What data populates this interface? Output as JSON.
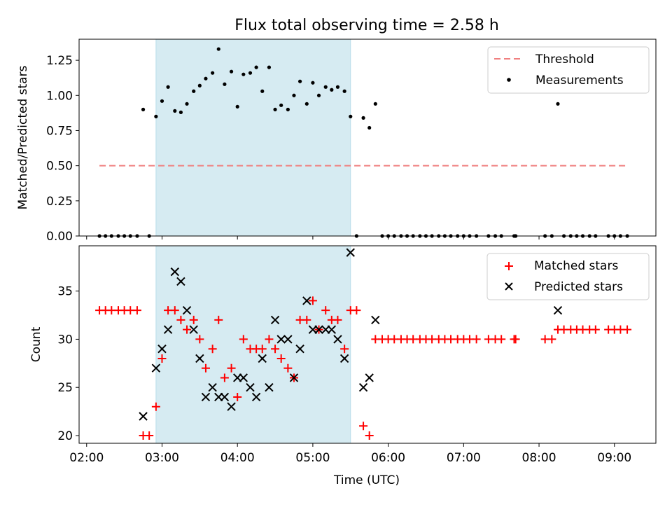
{
  "chart_data": [
    {
      "type": "scatter",
      "title": "Flux total observing time = 2.58 h",
      "ylabel": "Matched/Predicted stars",
      "xlabel": "",
      "xlim": [
        1.9,
        9.55
      ],
      "ylim": [
        0,
        1.4
      ],
      "yticks": [
        0,
        0.25,
        0.5,
        0.75,
        1.0,
        1.25
      ],
      "ytick_labels": [
        "0.00",
        "0.25",
        "0.50",
        "0.75",
        "1.00",
        "1.25"
      ],
      "xticks": [
        2,
        3,
        4,
        5,
        6,
        7,
        8,
        9
      ],
      "shaded_span": [
        2.92,
        5.5
      ],
      "legend": {
        "position": "top-right",
        "entries": [
          "Threshold",
          "Measurements"
        ]
      },
      "threshold": {
        "name": "Threshold",
        "value": 0.5,
        "x_range": [
          2.17,
          9.18
        ],
        "color": "#f08080"
      },
      "series": [
        {
          "name": "Measurements",
          "marker": "dot",
          "color": "#000000",
          "points": [
            [
              2.17,
              0
            ],
            [
              2.25,
              0
            ],
            [
              2.33,
              0
            ],
            [
              2.42,
              0
            ],
            [
              2.5,
              0
            ],
            [
              2.58,
              0
            ],
            [
              2.67,
              0
            ],
            [
              2.75,
              0.9
            ],
            [
              2.83,
              0
            ],
            [
              2.92,
              0.85
            ],
            [
              3.0,
              0.96
            ],
            [
              3.08,
              1.06
            ],
            [
              3.17,
              0.89
            ],
            [
              3.25,
              0.88
            ],
            [
              3.33,
              0.94
            ],
            [
              3.42,
              1.03
            ],
            [
              3.5,
              1.07
            ],
            [
              3.58,
              1.12
            ],
            [
              3.67,
              1.16
            ],
            [
              3.75,
              1.33
            ],
            [
              3.83,
              1.08
            ],
            [
              3.92,
              1.17
            ],
            [
              4.0,
              0.92
            ],
            [
              4.08,
              1.15
            ],
            [
              4.17,
              1.16
            ],
            [
              4.25,
              1.2
            ],
            [
              4.33,
              1.03
            ],
            [
              4.42,
              1.2
            ],
            [
              4.5,
              0.9
            ],
            [
              4.58,
              0.93
            ],
            [
              4.67,
              0.9
            ],
            [
              4.75,
              1.0
            ],
            [
              4.83,
              1.1
            ],
            [
              4.92,
              0.94
            ],
            [
              5.0,
              1.09
            ],
            [
              5.08,
              1.0
            ],
            [
              5.17,
              1.06
            ],
            [
              5.25,
              1.04
            ],
            [
              5.33,
              1.06
            ],
            [
              5.42,
              1.03
            ],
            [
              5.5,
              0.85
            ],
            [
              5.58,
              0
            ],
            [
              5.67,
              0.84
            ],
            [
              5.75,
              0.77
            ],
            [
              5.83,
              0.94
            ],
            [
              5.92,
              0
            ],
            [
              6.0,
              0
            ],
            [
              6.08,
              0
            ],
            [
              6.17,
              0
            ],
            [
              6.25,
              0
            ],
            [
              6.33,
              0
            ],
            [
              6.42,
              0
            ],
            [
              6.5,
              0
            ],
            [
              6.58,
              0
            ],
            [
              6.67,
              0
            ],
            [
              6.75,
              0
            ],
            [
              6.83,
              0
            ],
            [
              6.92,
              0
            ],
            [
              7.0,
              0
            ],
            [
              7.08,
              0
            ],
            [
              7.17,
              0
            ],
            [
              7.33,
              0
            ],
            [
              7.42,
              0
            ],
            [
              7.5,
              0
            ],
            [
              7.67,
              0
            ],
            [
              7.69,
              0
            ],
            [
              8.08,
              0
            ],
            [
              8.17,
              0
            ],
            [
              8.25,
              0.94
            ],
            [
              8.33,
              0
            ],
            [
              8.42,
              0
            ],
            [
              8.5,
              0
            ],
            [
              8.58,
              0
            ],
            [
              8.67,
              0
            ],
            [
              8.75,
              0
            ],
            [
              8.92,
              0
            ],
            [
              9.0,
              0
            ],
            [
              9.08,
              0
            ],
            [
              9.17,
              0
            ]
          ]
        }
      ]
    },
    {
      "type": "scatter",
      "title": "",
      "ylabel": "Count",
      "xlabel": "Time (UTC)",
      "xlim": [
        1.9,
        9.55
      ],
      "ylim": [
        19.2,
        39.7
      ],
      "yticks": [
        20,
        25,
        30,
        35
      ],
      "ytick_labels": [
        "20",
        "25",
        "30",
        "35"
      ],
      "xticks": [
        2,
        3,
        4,
        5,
        6,
        7,
        8,
        9
      ],
      "xtick_labels": [
        "02:00",
        "03:00",
        "04:00",
        "05:00",
        "06:00",
        "07:00",
        "08:00",
        "09:00"
      ],
      "shaded_span": [
        2.92,
        5.5
      ],
      "legend": {
        "position": "top-right",
        "entries": [
          "Matched stars",
          "Predicted stars"
        ]
      },
      "series": [
        {
          "name": "Matched stars",
          "marker": "plus",
          "color": "#ff0000",
          "points": [
            [
              2.17,
              33
            ],
            [
              2.25,
              33
            ],
            [
              2.33,
              33
            ],
            [
              2.42,
              33
            ],
            [
              2.5,
              33
            ],
            [
              2.58,
              33
            ],
            [
              2.67,
              33
            ],
            [
              2.75,
              20
            ],
            [
              2.83,
              20
            ],
            [
              2.92,
              23
            ],
            [
              3.0,
              28
            ],
            [
              3.08,
              33
            ],
            [
              3.17,
              33
            ],
            [
              3.25,
              32
            ],
            [
              3.33,
              31
            ],
            [
              3.42,
              32
            ],
            [
              3.5,
              30
            ],
            [
              3.58,
              27
            ],
            [
              3.67,
              29
            ],
            [
              3.75,
              32
            ],
            [
              3.83,
              26
            ],
            [
              3.92,
              27
            ],
            [
              4.0,
              24
            ],
            [
              4.08,
              30
            ],
            [
              4.17,
              29
            ],
            [
              4.25,
              29
            ],
            [
              4.33,
              29
            ],
            [
              4.42,
              30
            ],
            [
              4.5,
              29
            ],
            [
              4.58,
              28
            ],
            [
              4.67,
              27
            ],
            [
              4.75,
              26
            ],
            [
              4.83,
              32
            ],
            [
              4.92,
              32
            ],
            [
              5.0,
              34
            ],
            [
              5.08,
              31
            ],
            [
              5.17,
              33
            ],
            [
              5.25,
              32
            ],
            [
              5.33,
              32
            ],
            [
              5.42,
              29
            ],
            [
              5.5,
              33
            ],
            [
              5.58,
              33
            ],
            [
              5.67,
              21
            ],
            [
              5.75,
              20
            ],
            [
              5.83,
              30
            ],
            [
              5.92,
              30
            ],
            [
              6.0,
              30
            ],
            [
              6.08,
              30
            ],
            [
              6.17,
              30
            ],
            [
              6.25,
              30
            ],
            [
              6.33,
              30
            ],
            [
              6.42,
              30
            ],
            [
              6.5,
              30
            ],
            [
              6.58,
              30
            ],
            [
              6.67,
              30
            ],
            [
              6.75,
              30
            ],
            [
              6.83,
              30
            ],
            [
              6.92,
              30
            ],
            [
              7.0,
              30
            ],
            [
              7.08,
              30
            ],
            [
              7.17,
              30
            ],
            [
              7.33,
              30
            ],
            [
              7.42,
              30
            ],
            [
              7.5,
              30
            ],
            [
              7.67,
              30
            ],
            [
              7.69,
              30
            ],
            [
              8.08,
              30
            ],
            [
              8.17,
              30
            ],
            [
              8.25,
              31
            ],
            [
              8.33,
              31
            ],
            [
              8.42,
              31
            ],
            [
              8.5,
              31
            ],
            [
              8.58,
              31
            ],
            [
              8.67,
              31
            ],
            [
              8.75,
              31
            ],
            [
              8.92,
              31
            ],
            [
              9.0,
              31
            ],
            [
              9.08,
              31
            ],
            [
              9.17,
              31
            ]
          ]
        },
        {
          "name": "Predicted stars",
          "marker": "x",
          "color": "#000000",
          "points": [
            [
              2.75,
              22
            ],
            [
              2.92,
              27
            ],
            [
              3.0,
              29
            ],
            [
              3.08,
              31
            ],
            [
              3.17,
              37
            ],
            [
              3.25,
              36
            ],
            [
              3.33,
              33
            ],
            [
              3.42,
              31
            ],
            [
              3.5,
              28
            ],
            [
              3.58,
              24
            ],
            [
              3.67,
              25
            ],
            [
              3.75,
              24
            ],
            [
              3.83,
              24
            ],
            [
              3.92,
              23
            ],
            [
              4.0,
              26
            ],
            [
              4.08,
              26
            ],
            [
              4.17,
              25
            ],
            [
              4.25,
              24
            ],
            [
              4.33,
              28
            ],
            [
              4.42,
              25
            ],
            [
              4.5,
              32
            ],
            [
              4.58,
              30
            ],
            [
              4.67,
              30
            ],
            [
              4.75,
              26
            ],
            [
              4.83,
              29
            ],
            [
              4.92,
              34
            ],
            [
              5.0,
              31
            ],
            [
              5.08,
              31
            ],
            [
              5.17,
              31
            ],
            [
              5.25,
              31
            ],
            [
              5.33,
              30
            ],
            [
              5.42,
              28
            ],
            [
              5.5,
              39
            ],
            [
              5.67,
              25
            ],
            [
              5.75,
              26
            ],
            [
              5.83,
              32
            ],
            [
              8.25,
              33
            ]
          ]
        }
      ]
    }
  ]
}
